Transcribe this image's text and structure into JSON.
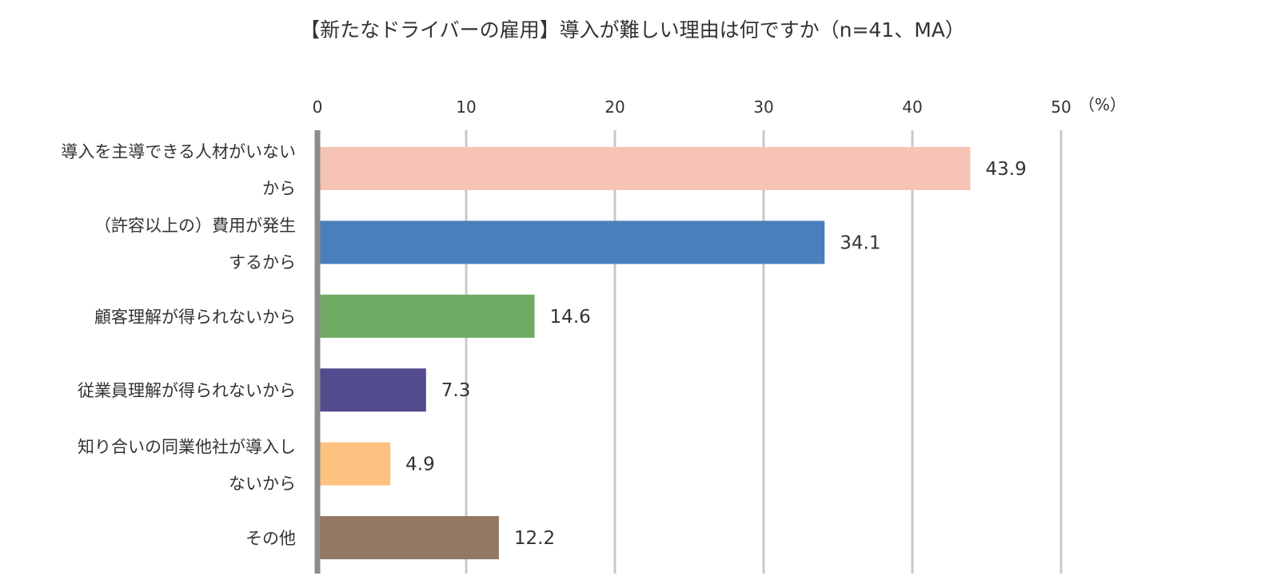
{
  "chart_data": {
    "type": "bar",
    "orientation": "horizontal",
    "title": "【新たなドライバーの雇用】導入が難しい理由は何ですか（n=41、MA）",
    "unit_label": "（%）",
    "xlim": [
      0,
      50
    ],
    "ticks": [
      0,
      10,
      20,
      30,
      40,
      50
    ],
    "grid": true,
    "legend": "none",
    "categories": [
      [
        "導入を主導できる人材がいない",
        "から"
      ],
      [
        "（許容以上の）費用が発生",
        "するから"
      ],
      [
        "顧客理解が得られないから"
      ],
      [
        "従業員理解が得られないから"
      ],
      [
        "知り合いの同業他社が導入し",
        "ないから"
      ],
      [
        "その他"
      ]
    ],
    "values": [
      43.9,
      34.1,
      14.6,
      7.3,
      4.9,
      12.2
    ],
    "value_labels": [
      "43.9",
      "34.1",
      "14.6",
      "7.3",
      "4.9",
      "12.2"
    ],
    "colors": [
      "#F7C3B5",
      "#4A7FBD",
      "#6EAA62",
      "#524B8E",
      "#FDC27F",
      "#937863"
    ]
  }
}
